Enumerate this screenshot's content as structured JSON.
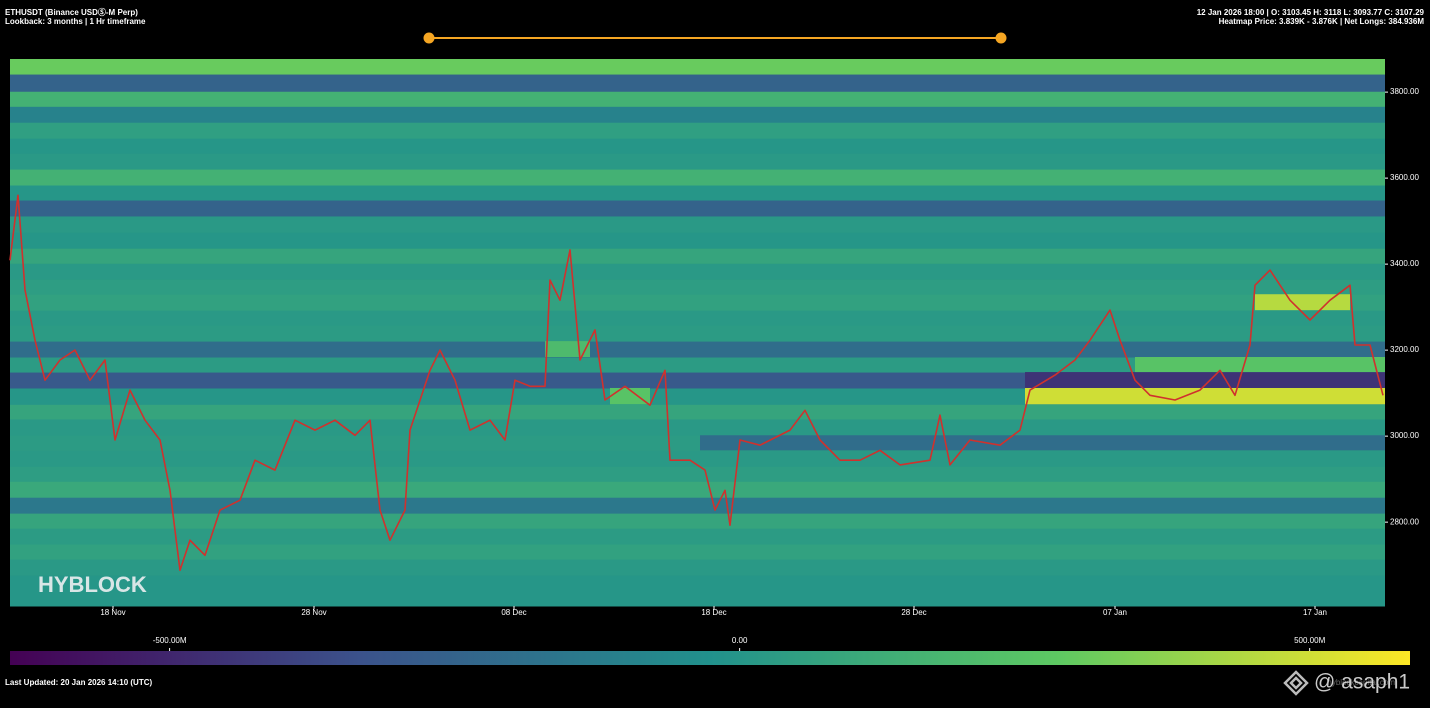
{
  "chart_data": {
    "type": "heatmap",
    "title": "ETHUSDT (Binance USDⓈ-M Perp)",
    "subtitle": "Lookback: 3 months | 1 Hr timeframe",
    "info": [
      "12 Jan 2026 18:00 | O: 3103.45 H: 3118 L: 3093.77 C: 3107.29",
      "Heatmap Price: 3.839K - 3.876K | Net Longs: 384.936M"
    ],
    "watermark": "HYBLOCK",
    "footer": "Last Updated: 20 Jan 2026 14:10 (UTC)",
    "credit": "@ asaph1",
    "source": "hyblockcapital.com",
    "xlim": [
      0,
      68.75
    ],
    "xticks": [
      {
        "value": 5.15,
        "label": "18 Nov"
      },
      {
        "value": 15.2,
        "label": "28 Nov"
      },
      {
        "value": 25.2,
        "label": "08 Dec"
      },
      {
        "value": 35.2,
        "label": "18 Dec"
      },
      {
        "value": 45.2,
        "label": "28 Dec"
      },
      {
        "value": 55.25,
        "label": "07 Jan"
      },
      {
        "value": 65.25,
        "label": "17 Jan"
      }
    ],
    "ylim": [
      2605,
      3877
    ],
    "yticks": [
      {
        "value": 2800,
        "label": "2800.00"
      },
      {
        "value": 3000,
        "label": "3000.00"
      },
      {
        "value": 3200,
        "label": "3200.00"
      },
      {
        "value": 3400,
        "label": "3400.00"
      },
      {
        "value": 3600,
        "label": "3600.00"
      },
      {
        "value": 3800,
        "label": "3800.00"
      }
    ],
    "colorscale": [
      "#440154",
      "#3b528b",
      "#21918c",
      "#5ec962",
      "#fde725"
    ],
    "colorbar": {
      "lim": [
        -640,
        588
      ],
      "ticks": [
        {
          "value": -500,
          "label": "-500.00M"
        },
        {
          "value": 0,
          "label": "0.00"
        },
        {
          "value": 500,
          "label": "500.00M"
        }
      ]
    },
    "heatmap": {
      "bins": [
        2605,
        2640,
        2677,
        2714,
        2749,
        2786,
        2821,
        2858,
        2895,
        2930,
        2967,
        3002,
        3040,
        3074,
        3112,
        3149,
        3184,
        3221,
        3258,
        3293,
        3330,
        3365,
        3402,
        3437,
        3474,
        3512,
        3549,
        3584,
        3621,
        3658,
        3693,
        3730,
        3767,
        3802,
        3842,
        3877
      ],
      "values": [
        0,
        0,
        20,
        60,
        30,
        80,
        -150,
        100,
        40,
        20,
        30,
        20,
        80,
        0,
        -300,
        30,
        -200,
        30,
        20,
        60,
        40,
        20,
        80,
        0,
        20,
        -250,
        0,
        150,
        20,
        0,
        50,
        -100,
        150,
        -250,
        300
      ],
      "segments": [
        {
          "x": [
            50.75,
            68.75
          ],
          "y": [
            3074,
            3112
          ],
          "value": 500
        },
        {
          "x": [
            50.75,
            68.75
          ],
          "y": [
            3112,
            3149
          ],
          "value": -450
        },
        {
          "x": [
            56.25,
            68.75
          ],
          "y": [
            3149,
            3184
          ],
          "value": 250
        },
        {
          "x": [
            62.25,
            67
          ],
          "y": [
            3293,
            3330
          ],
          "value": 450
        },
        {
          "x": [
            30,
            32
          ],
          "y": [
            3074,
            3112
          ],
          "value": 250
        },
        {
          "x": [
            26.75,
            29
          ],
          "y": [
            3184,
            3221
          ],
          "value": 200
        },
        {
          "x": [
            34.5,
            68.75
          ],
          "y": [
            2967,
            3002
          ],
          "value": -200
        }
      ]
    },
    "series": [
      {
        "name": "Price",
        "color": "#d0312d",
        "x": [
          0,
          0.4,
          0.75,
          1.25,
          1.75,
          2.5,
          3.25,
          4,
          4.75,
          5.25,
          6,
          6.75,
          7.5,
          8,
          8.5,
          9,
          9.75,
          10.5,
          11.5,
          12.25,
          13.25,
          14.25,
          15.25,
          16.25,
          17.25,
          18,
          18.5,
          19,
          19.75,
          20,
          21,
          21.5,
          22.25,
          23,
          24,
          24.75,
          25.25,
          26,
          26.75,
          27,
          27.5,
          28,
          28.5,
          29.25,
          29.75,
          30.75,
          32,
          32.75,
          33,
          34,
          34.75,
          35.25,
          35.75,
          36,
          36.5,
          37.5,
          39,
          39.75,
          40.5,
          41.5,
          42.5,
          43.5,
          44.5,
          46,
          46.5,
          47,
          48,
          49.5,
          50.5,
          51,
          52.25,
          53.25,
          54,
          55,
          55.5,
          56.25,
          57,
          58.25,
          59.5,
          60.5,
          61.25,
          62,
          62.25,
          63,
          64,
          65,
          66,
          67,
          67.25,
          68,
          68.65
        ],
        "values": [
          3409,
          3560,
          3340,
          3223,
          3130,
          3177,
          3200,
          3130,
          3177,
          2991,
          3107,
          3037,
          2991,
          2874,
          2688,
          2758,
          2723,
          2828,
          2851,
          2944,
          2921,
          3037,
          3014,
          3037,
          3002,
          3037,
          2828,
          2758,
          2828,
          3014,
          3153,
          3200,
          3130,
          3014,
          3037,
          2991,
          3130,
          3116,
          3116,
          3363,
          3316,
          3433,
          3177,
          3247,
          3084,
          3116,
          3072,
          3153,
          2944,
          2944,
          2921,
          2828,
          2874,
          2793,
          2991,
          2979,
          3014,
          3060,
          2991,
          2944,
          2944,
          2967,
          2933,
          2944,
          3049,
          2933,
          2991,
          2979,
          3014,
          3107,
          3142,
          3177,
          3223,
          3293,
          3223,
          3130,
          3095,
          3084,
          3107,
          3153,
          3095,
          3212,
          3351,
          3386,
          3316,
          3270,
          3316,
          3351,
          3212,
          3212,
          3095
        ]
      }
    ]
  }
}
